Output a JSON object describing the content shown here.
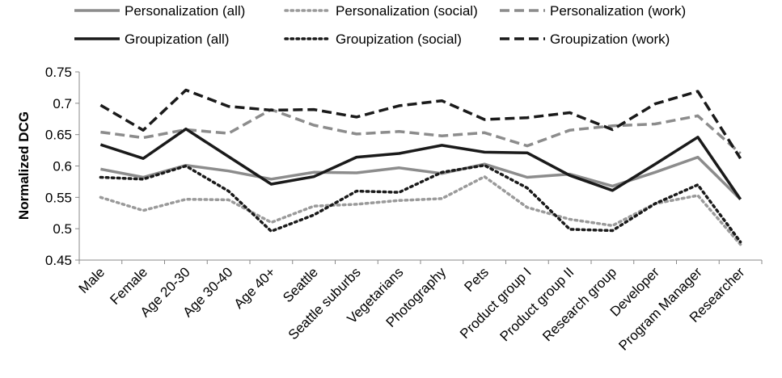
{
  "chart_data": {
    "type": "line",
    "title": "",
    "xlabel": "",
    "ylabel": "Normalized DCG",
    "ylim": [
      0.45,
      0.75
    ],
    "yticks": [
      0.45,
      0.5,
      0.55,
      0.6,
      0.65,
      0.7,
      0.75
    ],
    "ytick_labels": [
      "0.45",
      "0.5",
      "0.55",
      "0.6",
      "0.65",
      "0.7",
      "0.75"
    ],
    "grid": false,
    "legend_position": "top",
    "categories": [
      "Male",
      "Female",
      "Age 20-30",
      "Age 30-40",
      "Age 40+",
      "Seattle",
      "Seattle suburbs",
      "Vegetarians",
      "Photography",
      "Pets",
      "Product group I",
      "Product group II",
      "Research group",
      "Developer",
      "Program Manager",
      "Researcher"
    ],
    "series": [
      {
        "name": "Personalization (all)",
        "color": "#8c8c8c",
        "style": "solid",
        "values": [
          0.595,
          0.582,
          0.601,
          0.592,
          0.579,
          0.59,
          0.589,
          0.597,
          0.588,
          0.603,
          0.582,
          0.587,
          0.568,
          0.59,
          0.614,
          0.547
        ]
      },
      {
        "name": "Personalization (social)",
        "color": "#9a9a9a",
        "style": "dotted",
        "values": [
          0.55,
          0.529,
          0.547,
          0.546,
          0.51,
          0.536,
          0.539,
          0.545,
          0.548,
          0.583,
          0.534,
          0.515,
          0.505,
          0.54,
          0.553,
          0.475
        ]
      },
      {
        "name": "Personalization (work)",
        "color": "#8c8c8c",
        "style": "dashed",
        "values": [
          0.654,
          0.645,
          0.658,
          0.652,
          0.69,
          0.665,
          0.651,
          0.655,
          0.648,
          0.653,
          0.632,
          0.657,
          0.664,
          0.667,
          0.68,
          0.62
        ]
      },
      {
        "name": "Groupization (all)",
        "color": "#1a1a1a",
        "style": "solid",
        "values": [
          0.634,
          0.612,
          0.659,
          0.615,
          0.571,
          0.583,
          0.614,
          0.62,
          0.633,
          0.622,
          0.621,
          0.585,
          0.561,
          0.603,
          0.646,
          0.547
        ]
      },
      {
        "name": "Groupization (social)",
        "color": "#1a1a1a",
        "style": "dotted",
        "values": [
          0.582,
          0.579,
          0.6,
          0.56,
          0.496,
          0.522,
          0.56,
          0.558,
          0.59,
          0.601,
          0.565,
          0.499,
          0.497,
          0.54,
          0.57,
          0.479
        ]
      },
      {
        "name": "Groupization (work)",
        "color": "#1a1a1a",
        "style": "dashed",
        "values": [
          0.697,
          0.657,
          0.721,
          0.695,
          0.689,
          0.69,
          0.678,
          0.696,
          0.704,
          0.674,
          0.677,
          0.685,
          0.658,
          0.699,
          0.719,
          0.612
        ]
      }
    ]
  }
}
